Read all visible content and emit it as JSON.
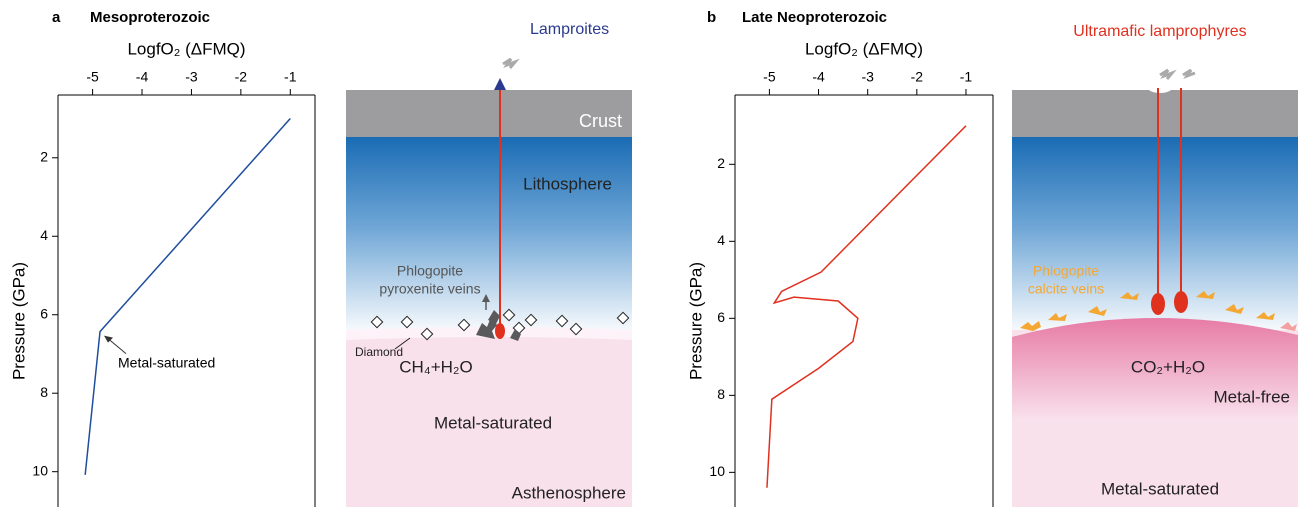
{
  "chart_data": [
    {
      "type": "line",
      "x_label": "LogfO₂ (ΔFMQ)",
      "y_label": "Pressure (GPa)",
      "xlim": [
        -5.7,
        -0.5
      ],
      "xticks": [
        -5,
        -4,
        -3,
        -2,
        -1
      ],
      "ylim": [
        0.4,
        10.9
      ],
      "yticks": [
        2,
        4,
        6,
        8,
        10
      ],
      "y_inverted": true,
      "annotation": "Metal-saturated",
      "series": [
        {
          "color": "#1f4e9c",
          "x": [
            -1,
            -4.85,
            -5.15
          ],
          "values": [
            1.0,
            6.43,
            10.08
          ]
        }
      ]
    },
    {
      "type": "line",
      "x_label": "LogfO₂ (ΔFMQ)",
      "y_label": "Pressure (GPa)",
      "xlim": [
        -5.7,
        -0.45
      ],
      "xticks": [
        -5,
        -4,
        -3,
        -2,
        -1
      ],
      "ylim": [
        0.2,
        10.9
      ],
      "yticks": [
        2,
        4,
        6,
        8,
        10
      ],
      "y_inverted": true,
      "series": [
        {
          "color": "#e0301e",
          "x": [
            -1,
            -3.95,
            -4.75,
            -4.9,
            -4.5,
            -3.6,
            -3.2,
            -3.3,
            -4.0,
            -4.95,
            -5.05
          ],
          "values": [
            1.0,
            4.8,
            5.3,
            5.6,
            5.45,
            5.55,
            6.0,
            6.6,
            7.3,
            8.1,
            10.4
          ]
        }
      ]
    }
  ],
  "panels": [
    {
      "letter": "a",
      "title": "Mesoproterozoic",
      "diagram": {
        "magma": "Lamproites",
        "crust": "Crust",
        "lithosphere": "Lithosphere",
        "veins": [
          "Phlogopite",
          "pyroxenite veins"
        ],
        "diamond": "Diamond",
        "fluid": "CH₄+H₂O",
        "mantle": "Metal-saturated",
        "asthenosphere": "Asthenosphere"
      }
    },
    {
      "letter": "b",
      "title": "Late Neoproterozoic",
      "diagram": {
        "magma": "Ultramafic lamprophyres",
        "veins": [
          "Phlogopite",
          "calcite veins"
        ],
        "fluid": "CO₂+H₂O",
        "upper": "Metal-free",
        "mantle": "Metal-saturated"
      }
    }
  ]
}
